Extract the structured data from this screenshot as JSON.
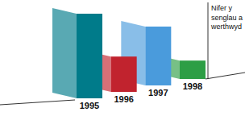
{
  "chart_data": {
    "type": "bar",
    "categories": [
      "1995",
      "1996",
      "1997",
      "1998"
    ],
    "values": [
      115,
      48,
      80,
      25
    ],
    "colors": [
      "#007b8a",
      "#c1232e",
      "#4a9bdc",
      "#2d9e45"
    ],
    "annotation": "Nifer y senglau a werthwyd",
    "tick_labels": "x"
  }
}
